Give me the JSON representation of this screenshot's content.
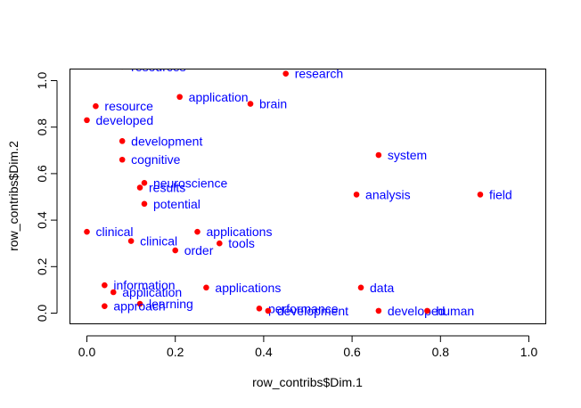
{
  "chart_data": {
    "type": "scatter",
    "title": "",
    "xlabel": "row_contribs$Dim.1",
    "ylabel": "row_contribs$Dim.2",
    "xlim": [
      -0.04,
      1.04
    ],
    "ylim": [
      -0.04,
      1.06
    ],
    "xticks": [
      0.0,
      0.2,
      0.4,
      0.6,
      0.8,
      1.0
    ],
    "yticks": [
      0.0,
      0.2,
      0.4,
      0.6,
      0.8,
      1.0
    ],
    "xtick_labels": [
      "0.0",
      "0.2",
      "0.4",
      "0.6",
      "0.8",
      "1.0"
    ],
    "ytick_labels": [
      "0.0",
      "0.2",
      "0.4",
      "0.6",
      "0.8",
      "1.0"
    ],
    "grid": false,
    "point_color": "#ff0000",
    "label_color": "#0000ff",
    "points": [
      {
        "label": "resources",
        "x": 0.08,
        "y": 1.06
      },
      {
        "label": "research",
        "x": 0.45,
        "y": 1.03
      },
      {
        "label": "application",
        "x": 0.21,
        "y": 0.93
      },
      {
        "label": "brain",
        "x": 0.37,
        "y": 0.9
      },
      {
        "label": "resource",
        "x": 0.02,
        "y": 0.89
      },
      {
        "label": "developed",
        "x": 0.0,
        "y": 0.83
      },
      {
        "label": "development",
        "x": 0.08,
        "y": 0.74
      },
      {
        "label": "cognitive",
        "x": 0.08,
        "y": 0.66
      },
      {
        "label": "system",
        "x": 0.66,
        "y": 0.68
      },
      {
        "label": "neuroscience",
        "x": 0.13,
        "y": 0.56
      },
      {
        "label": "results",
        "x": 0.12,
        "y": 0.54
      },
      {
        "label": "analysis",
        "x": 0.61,
        "y": 0.51
      },
      {
        "label": "field",
        "x": 0.89,
        "y": 0.51
      },
      {
        "label": "potential",
        "x": 0.13,
        "y": 0.47
      },
      {
        "label": "clinical",
        "x": 0.0,
        "y": 0.35
      },
      {
        "label": "applications",
        "x": 0.25,
        "y": 0.35
      },
      {
        "label": "clinical",
        "x": 0.1,
        "y": 0.31
      },
      {
        "label": "tools",
        "x": 0.3,
        "y": 0.3
      },
      {
        "label": "order",
        "x": 0.2,
        "y": 0.27
      },
      {
        "label": "information",
        "x": 0.04,
        "y": 0.12
      },
      {
        "label": "applications",
        "x": 0.27,
        "y": 0.11
      },
      {
        "label": "data",
        "x": 0.62,
        "y": 0.11
      },
      {
        "label": "application",
        "x": 0.06,
        "y": 0.09
      },
      {
        "label": "learning",
        "x": 0.12,
        "y": 0.04
      },
      {
        "label": "approach",
        "x": 0.04,
        "y": 0.03
      },
      {
        "label": "performance",
        "x": 0.39,
        "y": 0.02
      },
      {
        "label": "development",
        "x": 0.41,
        "y": 0.01
      },
      {
        "label": "developed",
        "x": 0.66,
        "y": 0.01
      },
      {
        "label": "human",
        "x": 0.77,
        "y": 0.01
      }
    ]
  }
}
